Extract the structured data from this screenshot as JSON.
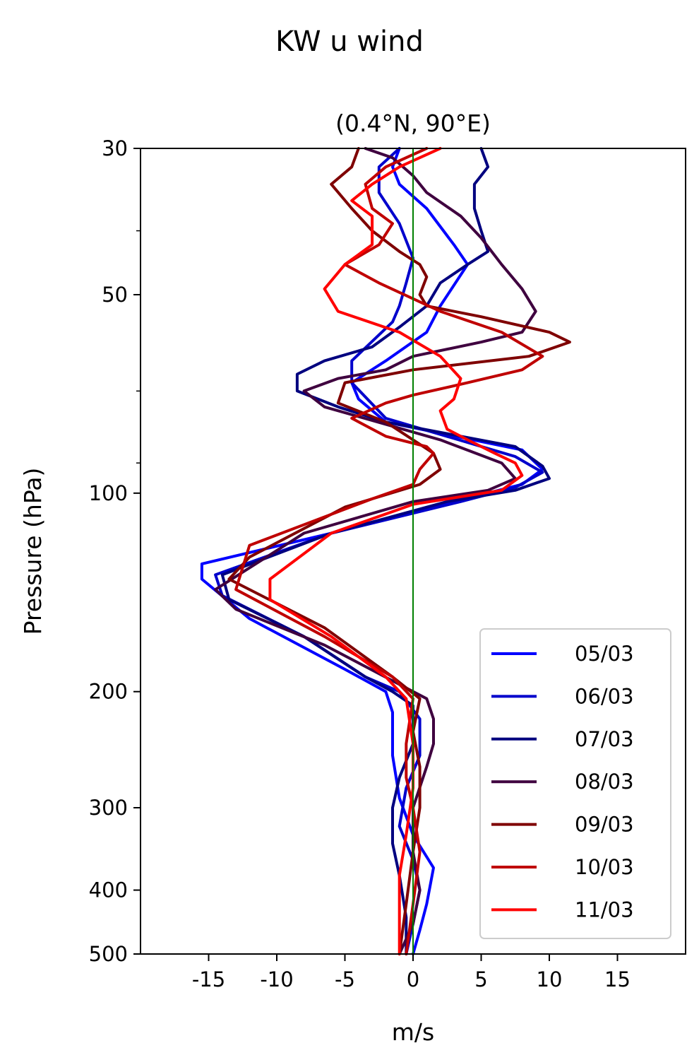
{
  "chart_data": {
    "type": "line",
    "title": "KW u wind",
    "subtitle": "(0.4°N, 90°E)",
    "xlabel": "m/s",
    "ylabel": "Pressure (hPa)",
    "xlim": [
      -20,
      20
    ],
    "ylim": [
      500,
      30
    ],
    "yscale": "log",
    "y_inverted": true,
    "x_ticks": [
      {
        "value": -15,
        "label": "-15"
      },
      {
        "value": -10,
        "label": "-10"
      },
      {
        "value": -5,
        "label": "-5"
      },
      {
        "value": 0,
        "label": "0"
      },
      {
        "value": 5,
        "label": "5"
      },
      {
        "value": 10,
        "label": "10"
      },
      {
        "value": 15,
        "label": "15"
      }
    ],
    "y_ticks": [
      {
        "value": 30,
        "label": "30"
      },
      {
        "value": 50,
        "label": "50"
      },
      {
        "value": 100,
        "label": "100"
      },
      {
        "value": 200,
        "label": "200"
      },
      {
        "value": 300,
        "label": "300"
      },
      {
        "value": 400,
        "label": "400"
      },
      {
        "value": 500,
        "label": "500"
      }
    ],
    "y_minor_ticks": [
      40,
      70,
      90
    ],
    "reference_line": {
      "x": 0,
      "color": "#008000"
    },
    "grid": false,
    "legend_position": "lower-right",
    "series": [
      {
        "name": "05/03",
        "color": "#0000ff",
        "x": [
          -1,
          -1.5,
          -1,
          1,
          3,
          4,
          2,
          1,
          -2,
          -4.5,
          -4,
          -2,
          8,
          9.5,
          8,
          3,
          -6,
          -15.5,
          -15.5,
          -12,
          -5,
          -2,
          -1.5,
          -1.5,
          -1,
          0,
          1.5,
          1,
          0.5,
          0
        ],
        "y": [
          30,
          32,
          34,
          37,
          42,
          45,
          52,
          57,
          63,
          68,
          72,
          78,
          86,
          92,
          97,
          103,
          115,
          128,
          135,
          155,
          185,
          200,
          215,
          250,
          290,
          330,
          370,
          420,
          460,
          500
        ]
      },
      {
        "name": "06/03",
        "color": "#0000cc",
        "x": [
          -1,
          -2.5,
          -2.5,
          -1,
          0,
          -0.5,
          -1,
          -1.5,
          -4.5,
          -4.5,
          -2,
          7.5,
          9.5,
          7.5,
          3.5,
          -6,
          -14.5,
          -14,
          -8,
          -3.5,
          -1,
          0.5,
          0.5,
          -0.5,
          -1,
          0,
          0.5,
          0,
          -0.5
        ],
        "y": [
          30,
          32,
          35,
          39,
          44,
          48,
          52,
          55,
          63,
          68,
          77,
          88,
          93,
          98,
          103,
          115,
          133,
          143,
          165,
          190,
          200,
          220,
          250,
          280,
          320,
          360,
          400,
          450,
          500
        ]
      },
      {
        "name": "07/03",
        "color": "#00007f",
        "x": [
          5,
          5.5,
          4.5,
          4.5,
          5,
          5.5,
          4,
          2,
          1,
          -1,
          -3,
          -6.5,
          -8.5,
          -8.5,
          -5.5,
          -2,
          7.5,
          9.5,
          10,
          7.5,
          2.5,
          -6,
          -14,
          -13.5,
          -8,
          -3.5,
          -1.5,
          0,
          0,
          -1,
          -1.5,
          -1.5,
          -1,
          -0.5,
          -0.5
        ],
        "y": [
          30,
          32,
          34,
          37,
          40,
          43,
          45,
          48,
          52,
          56,
          60,
          63,
          66,
          70,
          74,
          78,
          85,
          91,
          95,
          99,
          103,
          115,
          133,
          145,
          165,
          190,
          200,
          210,
          240,
          270,
          300,
          340,
          380,
          440,
          500
        ]
      },
      {
        "name": "08/03",
        "color": "#3f003f",
        "x": [
          -3.5,
          -1.5,
          0,
          1,
          3.5,
          5,
          6.5,
          8,
          9,
          8,
          5,
          0,
          -2,
          -5.5,
          -8,
          -6.5,
          2,
          6.5,
          7.5,
          5.5,
          0,
          -8,
          -14.5,
          -13,
          -6.5,
          -1,
          1,
          1.5,
          1.5,
          1,
          0,
          0,
          0.5,
          0,
          -1
        ],
        "y": [
          30,
          31,
          33,
          35,
          38,
          41,
          45,
          49,
          53,
          57,
          59,
          62,
          65,
          67,
          70,
          74,
          83,
          90,
          95,
          99,
          103,
          115,
          140,
          150,
          170,
          195,
          205,
          220,
          240,
          260,
          300,
          350,
          400,
          450,
          500
        ]
      },
      {
        "name": "09/03",
        "color": "#7f0000",
        "x": [
          -4,
          -4.5,
          -6,
          -4.5,
          -3,
          -1,
          0.5,
          1,
          0.5,
          1,
          5,
          10,
          11.5,
          8.5,
          0,
          -5,
          -5.5,
          -2,
          1.5,
          2,
          0.5,
          -5,
          -12,
          -13.5,
          -6.5,
          -1.5,
          0.5,
          0,
          0.5,
          0.5,
          0,
          -0.5,
          -1
        ],
        "y": [
          30,
          32,
          34,
          37,
          40,
          43,
          45,
          47,
          50,
          52,
          54,
          57,
          59,
          62,
          65,
          68,
          73,
          78,
          87,
          92,
          97,
          105,
          125,
          135,
          160,
          190,
          205,
          230,
          260,
          300,
          350,
          420,
          500
        ]
      },
      {
        "name": "10/03",
        "color": "#bf0000",
        "x": [
          1,
          -2,
          -3.5,
          -3,
          -1.5,
          -2.5,
          -5,
          -2.5,
          2,
          6.5,
          9.5,
          8,
          4,
          0,
          -2,
          -4.5,
          -2,
          1,
          1.5,
          0.5,
          0,
          -3,
          -12,
          -13,
          -6.5,
          -1.5,
          0,
          -0.5,
          -0.5,
          0,
          0.5,
          0,
          -0.5
        ],
        "y": [
          30,
          32,
          34,
          37,
          39,
          42,
          45,
          48,
          53,
          57,
          62,
          65,
          68,
          71,
          73,
          77,
          82,
          85,
          87,
          92,
          97,
          102,
          120,
          140,
          165,
          190,
          205,
          240,
          270,
          300,
          350,
          420,
          500
        ]
      },
      {
        "name": "11/03",
        "color": "#ff0000",
        "x": [
          2,
          -1,
          -3,
          -4.5,
          -3,
          -3,
          -5,
          -6.5,
          -5.5,
          -1,
          2,
          3.5,
          3,
          2,
          2.5,
          4,
          6,
          7.5,
          8,
          6.5,
          0,
          -6,
          -10.5,
          -10.5,
          -6,
          -2,
          -0.5,
          0,
          0,
          -0.5,
          -1,
          -1,
          -1
        ],
        "y": [
          30,
          32,
          34,
          36,
          38,
          42,
          45,
          49,
          53,
          57,
          62,
          67,
          72,
          75,
          80,
          83,
          87,
          90,
          94,
          99,
          104,
          115,
          135,
          145,
          165,
          190,
          205,
          240,
          280,
          330,
          380,
          440,
          500
        ]
      }
    ]
  }
}
